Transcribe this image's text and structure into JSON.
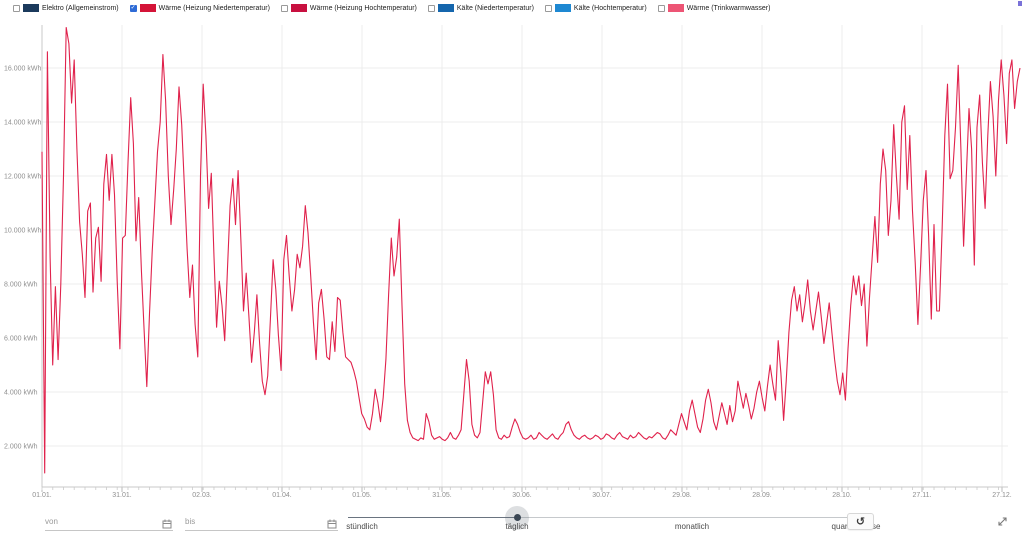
{
  "legend": {
    "checkbox_checked_color": "#2e6bd6",
    "items": [
      {
        "label": "Elektro (Allgemeinstrom)",
        "color": "#1b3a5c",
        "checked": false
      },
      {
        "label": "Wärme (Heizung Niedertemperatur)",
        "color": "#d41438",
        "checked": true
      },
      {
        "label": "Wärme (Heizung Hochtemperatur)",
        "color": "#c81040",
        "checked": false
      },
      {
        "label": "Kälte (Niedertemperatur)",
        "color": "#1566ad",
        "checked": false
      },
      {
        "label": "Kälte (Hochtemperatur)",
        "color": "#1e88d2",
        "checked": false
      },
      {
        "label": "Wärme (Trinkwarmwasser)",
        "color": "#ed5575",
        "checked": false
      }
    ]
  },
  "chart_data": {
    "type": "line",
    "title": "",
    "xlabel": "",
    "ylabel": "kWh",
    "grid": true,
    "legend_position": "top",
    "ylim": [
      0,
      17600
    ],
    "y_ticks": {
      "values": [
        2000,
        4000,
        6000,
        8000,
        10000,
        12000,
        14000,
        16000
      ],
      "labels": [
        "2.000 kWh",
        "4.000 kWh",
        "6.000 kWh",
        "8.000 kWh",
        "10.000 kWh",
        "12.000 kWh",
        "14.000 kWh",
        "16.000 kWh"
      ]
    },
    "x_tick_labels": [
      "01.01.",
      "31.01.",
      "02.03.",
      "01.04.",
      "01.05.",
      "31.05.",
      "30.06.",
      "30.07.",
      "29.08.",
      "28.09.",
      "28.10.",
      "27.11.",
      "27.12."
    ],
    "x_tick_interval_days": 30,
    "series": [
      {
        "name": "Wärme (Heizung Niedertemperatur)",
        "color": "#e0224c",
        "unit": "kWh",
        "resolution": "täglich",
        "values": [
          12900,
          1000,
          16600,
          9000,
          5000,
          7900,
          5200,
          8000,
          12000,
          17500,
          16900,
          14700,
          16300,
          13000,
          10300,
          9100,
          7500,
          10700,
          11000,
          7700,
          9700,
          10100,
          8100,
          11700,
          12800,
          11100,
          12800,
          11300,
          8100,
          5600,
          9700,
          9800,
          12500,
          14900,
          13200,
          9600,
          11200,
          8500,
          6300,
          4200,
          6900,
          9200,
          11000,
          12900,
          14000,
          16500,
          14800,
          12000,
          10200,
          11500,
          13000,
          15300,
          13900,
          11600,
          9300,
          7500,
          8700,
          6500,
          5300,
          12000,
          15400,
          13500,
          10800,
          12100,
          9000,
          6400,
          8100,
          7200,
          5900,
          8500,
          10900,
          11900,
          10200,
          12200,
          9700,
          7000,
          8400,
          6800,
          5100,
          6200,
          7600,
          5800,
          4400,
          3900,
          4600,
          6700,
          8900,
          7800,
          6100,
          4800,
          8900,
          9800,
          8300,
          7000,
          7800,
          9100,
          8600,
          9400,
          10900,
          9900,
          8300,
          6600,
          5200,
          7300,
          7800,
          6700,
          5300,
          5200,
          6600,
          5500,
          7500,
          7400,
          6200,
          5300,
          5200,
          5100,
          4800,
          4400,
          3800,
          3200,
          3000,
          2700,
          2600,
          3200,
          4100,
          3600,
          2900,
          3800,
          5200,
          7600,
          9700,
          8300,
          9000,
          10400,
          7200,
          4300,
          2950,
          2500,
          2300,
          2250,
          2200,
          2300,
          2250,
          3200,
          2900,
          2400,
          2250,
          2300,
          2350,
          2250,
          2200,
          2300,
          2500,
          2300,
          2250,
          2400,
          2600,
          3900,
          5200,
          4400,
          2800,
          2400,
          2300,
          2500,
          3600,
          4750,
          4300,
          4750,
          3900,
          2600,
          2300,
          2250,
          2400,
          2300,
          2350,
          2700,
          3000,
          2800,
          2500,
          2300,
          2250,
          2300,
          2400,
          2250,
          2300,
          2500,
          2400,
          2300,
          2250,
          2350,
          2450,
          2300,
          2250,
          2400,
          2500,
          2800,
          2900,
          2600,
          2400,
          2300,
          2250,
          2350,
          2400,
          2300,
          2250,
          2300,
          2400,
          2350,
          2250,
          2300,
          2450,
          2400,
          2300,
          2250,
          2400,
          2500,
          2350,
          2300,
          2250,
          2400,
          2300,
          2350,
          2500,
          2400,
          2300,
          2250,
          2350,
          2300,
          2400,
          2500,
          2450,
          2300,
          2250,
          2400,
          2600,
          2500,
          2400,
          2800,
          3200,
          2900,
          2600,
          3300,
          3700,
          3200,
          2700,
          2500,
          3000,
          3700,
          4100,
          3600,
          2900,
          2600,
          3100,
          3600,
          3200,
          2800,
          3500,
          2900,
          3300,
          4400,
          3900,
          3400,
          3950,
          3500,
          3000,
          3400,
          4000,
          4400,
          3800,
          3300,
          4200,
          5000,
          4300,
          3700,
          5900,
          4700,
          2950,
          4400,
          6200,
          7400,
          7900,
          7000,
          7600,
          6600,
          7300,
          8150,
          7000,
          6300,
          7000,
          7700,
          6800,
          5800,
          6500,
          7300,
          6200,
          5200,
          4400,
          3900,
          4700,
          3700,
          5600,
          7200,
          8300,
          7600,
          8300,
          7200,
          8000,
          5700,
          7500,
          9000,
          10500,
          8800,
          11700,
          13000,
          12200,
          9800,
          11100,
          13900,
          12000,
          10400,
          14000,
          14600,
          11500,
          13500,
          10700,
          8800,
          6500,
          8700,
          11100,
          12200,
          9800,
          6700,
          10200,
          7000,
          7000,
          10000,
          13500,
          15400,
          11900,
          12200,
          13800,
          16100,
          13000,
          9400,
          12000,
          14500,
          13000,
          8700,
          13800,
          15000,
          12500,
          10800,
          13500,
          15500,
          14200,
          12000,
          14800,
          16300,
          15000,
          13200,
          15800,
          16300,
          14500,
          15500,
          16000
        ]
      }
    ]
  },
  "controls": {
    "from_placeholder": "von",
    "to_placeholder": "bis",
    "calendar_icon": "calendar",
    "slider": {
      "options": [
        "stündlich",
        "täglich",
        "monatlich",
        "quartalsweise"
      ],
      "selected": "täglich"
    },
    "reset_glyph": "↺",
    "reset_icon": "reset-counterclockwise-arrow",
    "expand_icon": "expand-diagonal"
  }
}
